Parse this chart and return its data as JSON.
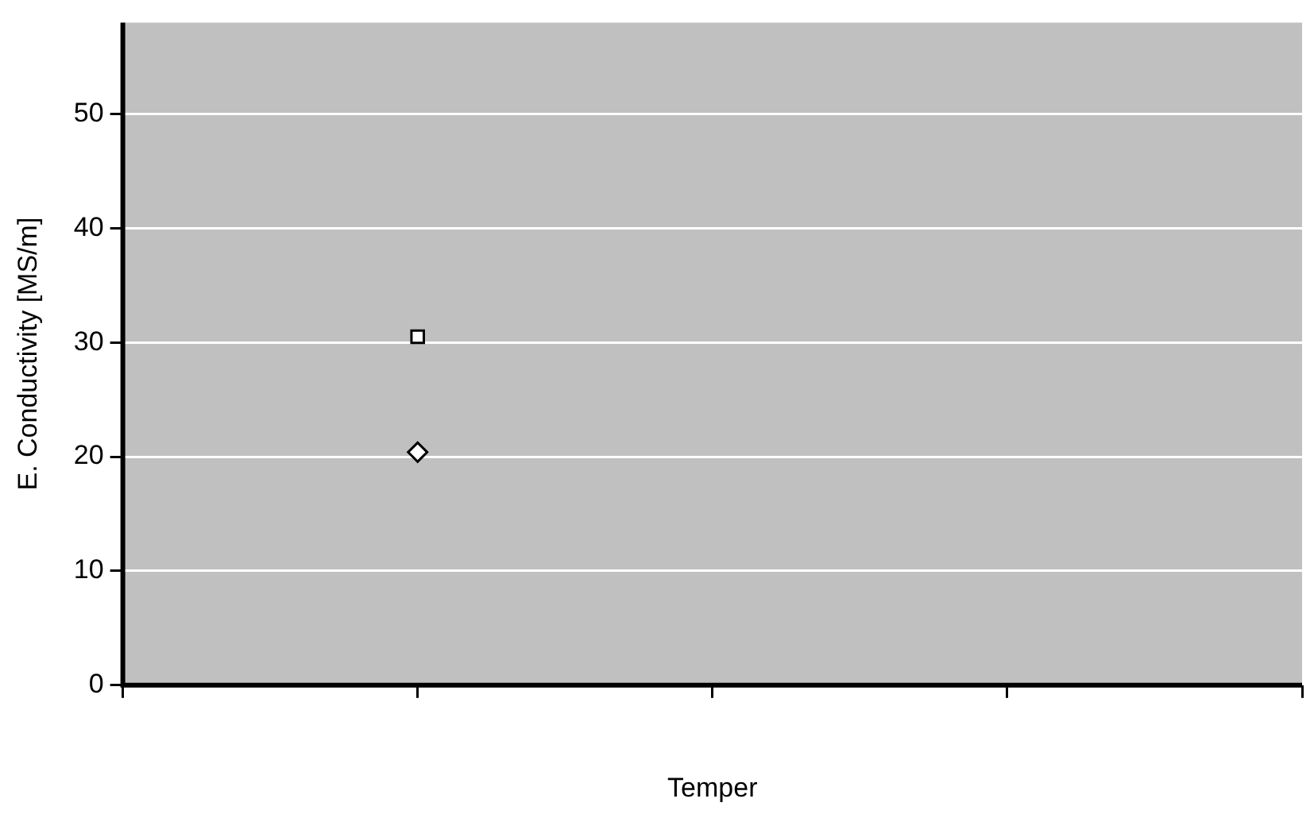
{
  "chart_data": {
    "type": "scatter",
    "xlabel": "Temper",
    "ylabel": "E. Conductivity [MS/m]",
    "categories": [
      null,
      null,
      null,
      null,
      null
    ],
    "series": [
      {
        "color": "#000000",
        "marker": "square",
        "values": [
          null,
          30.5,
          null,
          null,
          null
        ]
      },
      {
        "color": "#000000",
        "marker": "diamond",
        "values": [
          null,
          20.4,
          null,
          null,
          null
        ]
      }
    ],
    "ylim": [
      0,
      58
    ],
    "yticks": [
      0,
      10,
      20,
      30,
      40,
      50
    ],
    "grid": "y",
    "legend": false
  }
}
